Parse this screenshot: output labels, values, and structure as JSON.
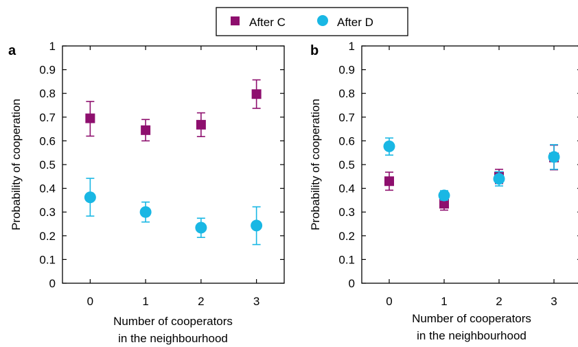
{
  "legend": {
    "entries": [
      {
        "label": "After C",
        "marker": "square",
        "color": "#8e0f6e"
      },
      {
        "label": "After D",
        "marker": "circle",
        "color": "#19b7e4"
      }
    ]
  },
  "chart_data": [
    {
      "type": "scatter",
      "panel": "a",
      "ylabel": "Probability of cooperation",
      "xlabel_lines": [
        "Number of cooperators",
        "in the neighbourhood"
      ],
      "x": [
        0,
        1,
        2,
        3
      ],
      "xlim": [
        -0.5,
        3.5
      ],
      "ylim": [
        0,
        1
      ],
      "y_ticks": [
        "0",
        "0.1",
        "0.2",
        "0.3",
        "0.4",
        "0.5",
        "0.6",
        "0.7",
        "0.8",
        "0.9",
        "1"
      ],
      "x_ticks": [
        "0",
        "1",
        "2",
        "3"
      ],
      "grid": false,
      "series": [
        {
          "name": "After C",
          "marker": "square",
          "color": "#8e0f6e",
          "values": [
            0.695,
            0.645,
            0.668,
            0.797
          ],
          "err_low": [
            0.62,
            0.6,
            0.618,
            0.737
          ],
          "err_high": [
            0.766,
            0.69,
            0.718,
            0.857
          ]
        },
        {
          "name": "After D",
          "marker": "circle",
          "color": "#19b7e4",
          "values": [
            0.362,
            0.3,
            0.234,
            0.243
          ],
          "err_low": [
            0.283,
            0.258,
            0.193,
            0.163
          ],
          "err_high": [
            0.442,
            0.342,
            0.274,
            0.322
          ]
        }
      ]
    },
    {
      "type": "scatter",
      "panel": "b",
      "ylabel": "Probability of cooperation",
      "xlabel_lines": [
        "Number of cooperators",
        "in the neighbourhood"
      ],
      "x": [
        0,
        1,
        2,
        3
      ],
      "xlim": [
        -0.5,
        3.5
      ],
      "ylim": [
        0,
        1
      ],
      "y_ticks": [
        "0",
        "0.1",
        "0.2",
        "0.3",
        "0.4",
        "0.5",
        "0.6",
        "0.7",
        "0.8",
        "0.9",
        "1"
      ],
      "x_ticks": [
        "0",
        "1",
        "2",
        "3"
      ],
      "grid": false,
      "series": [
        {
          "name": "After C",
          "marker": "square",
          "color": "#8e0f6e",
          "values": [
            0.43,
            0.335,
            0.45,
            0.53
          ],
          "err_low": [
            0.392,
            0.308,
            0.42,
            0.478
          ],
          "err_high": [
            0.468,
            0.362,
            0.48,
            0.582
          ]
        },
        {
          "name": "After D",
          "marker": "circle",
          "color": "#19b7e4",
          "values": [
            0.577,
            0.37,
            0.44,
            0.532
          ],
          "err_low": [
            0.54,
            0.35,
            0.41,
            0.48
          ],
          "err_high": [
            0.612,
            0.39,
            0.47,
            0.584
          ]
        }
      ]
    }
  ]
}
